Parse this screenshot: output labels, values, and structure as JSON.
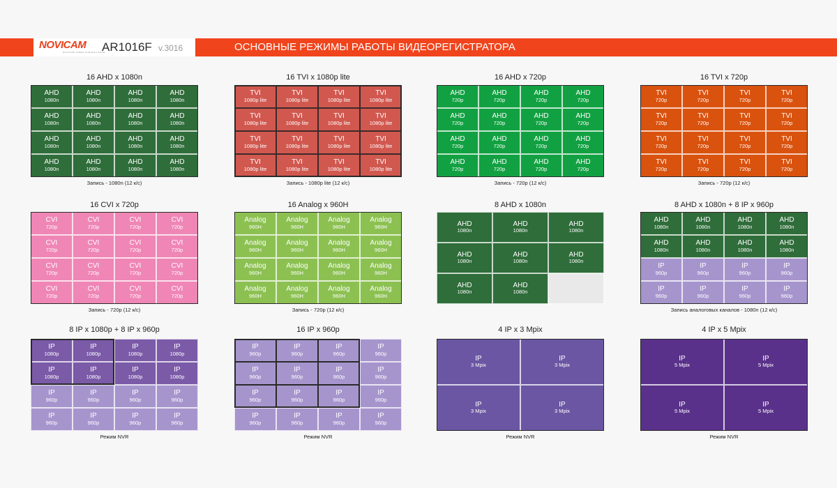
{
  "header": {
    "logo": "NOVICAM",
    "logo_tagline": "NOVICAM VIDEO SURVEILLANCE",
    "model": "AR1016F",
    "version": "v.3016",
    "title": "ОСНОВНЫЕ РЕЖИМЫ РАБОТЫ ВИДЕОРЕГИСТРАТОРА"
  },
  "colors": {
    "header_bar": "#f0441c",
    "ahd_dark": "#2f6d3a",
    "tvi_red": "#d1584f",
    "ahd_green": "#12a142",
    "tvi_orange": "#d9520e",
    "cvi_pink": "#ef86b6",
    "analog_green": "#8cc152",
    "ip_dark_purple": "#7b5aa8",
    "ip_light_purple": "#a695cd",
    "ip_mpix": "#6a56a3",
    "ip_5mpix": "#5a318a"
  },
  "panels": [
    {
      "title": "16 AHD x 1080n",
      "caption": "Запись - 1080n (12 к/с)",
      "cells": [
        {
          "l1": "AHD",
          "l2": "1080n",
          "count": 16
        }
      ]
    },
    {
      "title": "16 TVI x 1080p lite",
      "caption": "Запись - 1080p lite (12 к/с)",
      "cells": [
        {
          "l1": "TVI",
          "l2": "1080p lite",
          "count": 16
        }
      ]
    },
    {
      "title": "16 AHD x 720p",
      "caption": "Запись - 720p (12 к/с)",
      "cells": [
        {
          "l1": "AHD",
          "l2": "720p",
          "count": 16
        }
      ]
    },
    {
      "title": "16 TVI x 720p",
      "caption": "Запись - 720p (12 к/с)",
      "cells": [
        {
          "l1": "TVI",
          "l2": "720p",
          "count": 16
        }
      ]
    },
    {
      "title": "16 CVI x 720p",
      "caption": "Запись - 720p (12 к/с)",
      "cells": [
        {
          "l1": "CVI",
          "l2": "720p",
          "count": 16
        }
      ]
    },
    {
      "title": "16 Analog x 960H",
      "caption": "Запись - 720p (12 к/с)",
      "cells": [
        {
          "l1": "Analog",
          "l2": "960H",
          "count": 16
        }
      ]
    },
    {
      "title": "8 AHD x 1080n",
      "caption": "",
      "cells": [
        {
          "l1": "AHD",
          "l2": "1080n",
          "count": 8
        }
      ]
    },
    {
      "title": "8 AHD x 1080n + 8 IP x 960p",
      "caption": "Запись аналоговых каналов - 1080n (12 к/с)",
      "cells": [
        {
          "l1": "AHD",
          "l2": "1080n",
          "count": 8
        },
        {
          "l1": "IP",
          "l2": "960p",
          "count": 8
        }
      ]
    },
    {
      "title": "8 IP x 1080p + 8 IP x 960p",
      "caption": "Режим NVR",
      "cells": [
        {
          "l1": "IP",
          "l2": "1080p",
          "count": 8
        },
        {
          "l1": "IP",
          "l2": "960p",
          "count": 8
        }
      ]
    },
    {
      "title": "16 IP x 960p",
      "caption": "Режим NVR",
      "cells": [
        {
          "l1": "IP",
          "l2": "960p",
          "count": 16
        }
      ]
    },
    {
      "title": "4 IP x 3 Mpix",
      "caption": "Режим NVR",
      "cells": [
        {
          "l1": "IP",
          "l2": "3 Mpix",
          "count": 4
        }
      ]
    },
    {
      "title": "4 IP x 5 Mpix",
      "caption": "Режим NVR",
      "cells": [
        {
          "l1": "IP",
          "l2": "5 Mpix",
          "count": 4
        }
      ]
    }
  ]
}
